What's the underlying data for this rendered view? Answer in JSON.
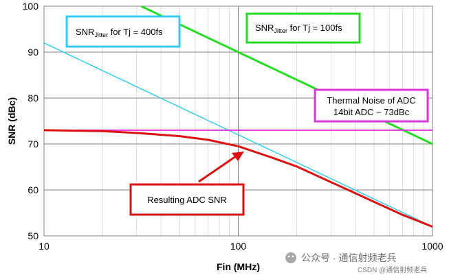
{
  "chart_data": {
    "type": "line",
    "xscale": "log",
    "xlim": [
      10,
      1000
    ],
    "ylim": [
      50,
      100
    ],
    "xlabel": "Fin (MHz)",
    "ylabel": "SNR (dBc)",
    "xticks": [
      "10",
      "100",
      "1000"
    ],
    "yticks": [
      "50",
      "60",
      "70",
      "80",
      "90",
      "100"
    ],
    "grid": true,
    "series": [
      {
        "name": "SNR Jitter for Tj = 400fs",
        "color": "#33ccee",
        "x": [
          10,
          1000
        ],
        "y": [
          92,
          52
        ]
      },
      {
        "name": "SNR Jitter for Tj = 100fs",
        "color": "#22dd22",
        "x": [
          31.6,
          1000
        ],
        "y": [
          100,
          70
        ]
      },
      {
        "name": "Thermal Noise of ADC 14bit ADC ~ 73dBc",
        "color": "#dd33dd",
        "x": [
          10,
          1000
        ],
        "y": [
          73,
          73
        ]
      },
      {
        "name": "Resulting ADC SNR",
        "color": "#dd1111",
        "x": [
          10,
          20,
          30,
          50,
          70,
          100,
          150,
          200,
          300,
          400,
          500,
          700,
          1000
        ],
        "y": [
          73,
          72.8,
          72.4,
          71.7,
          70.9,
          69.5,
          67.0,
          65.1,
          61.7,
          59.3,
          57.4,
          54.6,
          52
        ]
      }
    ],
    "annotations": {
      "tj400": {
        "prefix": "SNR",
        "sub": "Jitter",
        "suffix": " for Tj = 400fs"
      },
      "tj100": {
        "prefix": "SNR",
        "sub": "Jitter",
        "suffix": " for Tj = 100fs"
      },
      "thermal_line1": "Thermal Noise of ADC",
      "thermal_line2": "14bit ADC ~ 73dBc",
      "result": "Resulting ADC SNR"
    }
  },
  "watermark": {
    "main": "公众号 · 通信射频老兵",
    "small": "CSDN @通信射频老兵"
  }
}
